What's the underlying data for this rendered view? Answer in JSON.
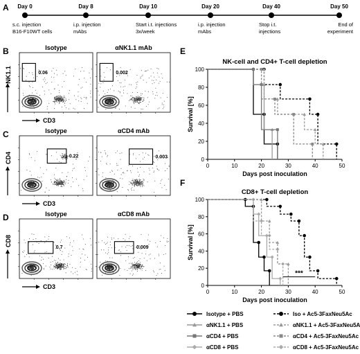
{
  "panels": {
    "A": "A",
    "B": "B",
    "C": "C",
    "D": "D",
    "E": "E",
    "F": "F"
  },
  "timeline": {
    "events": [
      {
        "day": "Day 0",
        "desc1": "s.c. injection",
        "desc2": "B16-F10WT cells"
      },
      {
        "day": "Day 8",
        "desc1": "i.p. injection",
        "desc2": "mAbs"
      },
      {
        "day": "Day 10",
        "desc1": "Start i.t. injections",
        "desc2": "3x/week"
      },
      {
        "day": "Day 20",
        "desc1": "i.p. injection",
        "desc2": "mAbs"
      },
      {
        "day": "Day 40",
        "desc1": "Stop i.t.",
        "desc2": "injections"
      },
      {
        "day": "Day 50",
        "desc1": "End of",
        "desc2": "experiment"
      }
    ]
  },
  "flow": {
    "B": {
      "ylabel": "NK1.1",
      "xlabel": "CD3",
      "left_title": "Isotype",
      "right_title": "αNK1.1 mAb",
      "left_value": "0.06",
      "right_value": "0.002"
    },
    "C": {
      "ylabel": "CD4",
      "xlabel": "CD3",
      "left_title": "Isotype",
      "right_title": "αCD4 mAb",
      "left_value": "0.22",
      "right_value": "0.003"
    },
    "D": {
      "ylabel": "CD8",
      "xlabel": "CD3",
      "left_title": "Isotype",
      "right_title": "αCD8 mAb",
      "left_value": "0.7",
      "right_value": "0.009"
    }
  },
  "chart_data": [
    {
      "type": "line",
      "title": "NK-cell and CD4+ T-cell depletion",
      "xlabel": "Days post inoculation",
      "ylabel": "Survival [%]",
      "xlim": [
        0,
        50
      ],
      "ylim": [
        0,
        100
      ],
      "xticks": [
        0,
        10,
        20,
        30,
        40,
        50
      ],
      "yticks": [
        0,
        20,
        40,
        60,
        80,
        100
      ],
      "series": [
        {
          "name": "Isotype + PBS",
          "x": [
            0,
            17,
            17,
            21,
            21,
            26,
            26
          ],
          "y": [
            100,
            100,
            50,
            50,
            17,
            17,
            0
          ],
          "color": "#000000",
          "dash": false,
          "marker": "circle"
        },
        {
          "name": "αNK1.1 + PBS",
          "x": [
            0,
            17,
            17,
            21,
            21,
            24,
            24
          ],
          "y": [
            100,
            100,
            83,
            83,
            33,
            33,
            0
          ],
          "color": "#999999",
          "dash": false,
          "marker": "triangle"
        },
        {
          "name": "αCD4 + PBS",
          "x": [
            0,
            17,
            17,
            20,
            20,
            26,
            26
          ],
          "y": [
            100,
            100,
            83,
            83,
            33,
            33,
            0
          ],
          "color": "#777777",
          "dash": false,
          "marker": "square"
        },
        {
          "name": "Iso + Ac5-3FaxNeu5Ac",
          "x": [
            0,
            21,
            21,
            27,
            27,
            38,
            38,
            41,
            41,
            48,
            48
          ],
          "y": [
            100,
            100,
            83,
            83,
            67,
            67,
            50,
            50,
            17,
            17,
            0
          ],
          "color": "#000000",
          "dash": true,
          "marker": "circle"
        },
        {
          "name": "αNK1.1 + Ac5-3FaxNeu5Ac",
          "x": [
            0,
            21,
            21,
            26,
            26,
            36,
            36,
            40,
            40,
            43,
            43
          ],
          "y": [
            100,
            100,
            67,
            67,
            50,
            50,
            33,
            33,
            17,
            17,
            0
          ],
          "color": "#999999",
          "dash": true,
          "marker": "triangle"
        },
        {
          "name": "αCD4 + Ac5-3FaxNeu5Ac",
          "x": [
            0,
            20,
            20,
            25,
            25,
            32,
            32,
            39,
            39
          ],
          "y": [
            100,
            100,
            67,
            67,
            50,
            50,
            17,
            17,
            0
          ],
          "color": "#888888",
          "dash": true,
          "marker": "square"
        }
      ]
    },
    {
      "type": "line",
      "title": "CD8+ T-cell depletion",
      "xlabel": "Days post inoculation",
      "ylabel": "Survival [%]",
      "xlim": [
        0,
        50
      ],
      "ylim": [
        0,
        100
      ],
      "xticks": [
        0,
        10,
        20,
        30,
        40,
        50
      ],
      "yticks": [
        0,
        20,
        40,
        60,
        80,
        100
      ],
      "annotation": "***",
      "series": [
        {
          "name": "Isotype + PBS",
          "x": [
            0,
            14,
            14,
            17,
            17,
            19,
            19,
            21,
            21,
            23,
            23
          ],
          "y": [
            100,
            100,
            92,
            92,
            50,
            50,
            33,
            33,
            17,
            17,
            0
          ],
          "color": "#000000",
          "dash": false,
          "marker": "circle"
        },
        {
          "name": "αCD8 + PBS",
          "x": [
            0,
            17,
            17,
            19,
            19,
            22,
            22,
            24,
            24,
            27,
            27
          ],
          "y": [
            100,
            100,
            83,
            83,
            58,
            58,
            33,
            33,
            8,
            8,
            0
          ],
          "color": "#aaaaaa",
          "dash": false,
          "marker": "diamond"
        },
        {
          "name": "Iso + Ac5-3FaxNeu5Ac",
          "x": [
            0,
            22,
            22,
            27,
            27,
            31,
            31,
            34,
            34,
            36,
            36,
            38,
            38,
            41,
            41,
            48,
            48
          ],
          "y": [
            100,
            100,
            92,
            92,
            83,
            83,
            75,
            75,
            58,
            58,
            33,
            33,
            17,
            17,
            8,
            8,
            0
          ],
          "color": "#000000",
          "dash": true,
          "marker": "circle"
        },
        {
          "name": "αCD8 + Ac5-3FaxNeu5Ac",
          "x": [
            0,
            17,
            17,
            20,
            20,
            23,
            23,
            26,
            26,
            28,
            28
          ],
          "y": [
            100,
            100,
            75,
            75,
            58,
            58,
            42,
            42,
            25,
            25,
            0
          ],
          "color": "#aaaaaa",
          "dash": true,
          "marker": "diamond"
        },
        {
          "name": "αNK1.1 + Ac5-3FaxNeu5Ac",
          "x": [
            0,
            20,
            20,
            23,
            23,
            26,
            26,
            30,
            30
          ],
          "y": [
            100,
            100,
            75,
            75,
            50,
            50,
            25,
            25,
            0
          ],
          "color": "#999999",
          "dash": true,
          "marker": "triangle"
        }
      ]
    }
  ],
  "legend": [
    {
      "label": "Isotype + PBS",
      "color": "#000000",
      "dash": false,
      "marker": "circle"
    },
    {
      "label": "Iso + Ac5-3FaxNeu5Ac",
      "color": "#000000",
      "dash": true,
      "marker": "circle"
    },
    {
      "label": "αNK1.1 + PBS",
      "color": "#999999",
      "dash": false,
      "marker": "triangle"
    },
    {
      "label": "αNK1.1 + Ac5-3FaxNeu5Ac",
      "color": "#999999",
      "dash": true,
      "marker": "triangle"
    },
    {
      "label": "αCD4 + PBS",
      "color": "#777777",
      "dash": false,
      "marker": "square"
    },
    {
      "label": "αCD4 + Ac5-3FaxNeu5Ac",
      "color": "#888888",
      "dash": true,
      "marker": "square"
    },
    {
      "label": "αCD8 + PBS",
      "color": "#aaaaaa",
      "dash": false,
      "marker": "diamond"
    },
    {
      "label": "αCD8 + Ac5-3FaxNeu5Ac",
      "color": "#aaaaaa",
      "dash": true,
      "marker": "diamond"
    }
  ]
}
